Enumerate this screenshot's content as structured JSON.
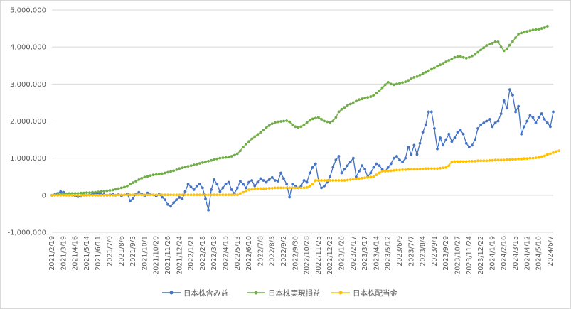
{
  "chart_data": {
    "type": "line",
    "title": "",
    "xlabel": "",
    "ylabel": "",
    "ylim": [
      -1000000,
      5000000
    ],
    "ytick_step": 1000000,
    "y_tick_labels": [
      "-1,000,000",
      "0",
      "1,000,000",
      "2,000,000",
      "3,000,000",
      "4,000,000",
      "5,000,000"
    ],
    "negative_tick_color": "#ff0000",
    "grid": true,
    "legend_position": "bottom",
    "x_tick_labels": [
      "2021/2/19",
      "2021/3/19",
      "2021/4/16",
      "2021/5/14",
      "2021/6/11",
      "2021/7/9",
      "2021/8/6",
      "2021/9/3",
      "2021/10/1",
      "2021/10/29",
      "2021/11/26",
      "2021/12/24",
      "2022/1/21",
      "2022/2/18",
      "2022/3/18",
      "2022/4/15",
      "2022/5/13",
      "2022/6/10",
      "2022/7/8",
      "2022/8/5",
      "2022/9/2",
      "2022/9/30",
      "2022/10/28",
      "2022/11/25",
      "2022/12/23",
      "2023/1/20",
      "2023/2/17",
      "2023/3/17",
      "2023/4/14",
      "2023/5/12",
      "2023/6/9",
      "2023/7/7",
      "2023/8/4",
      "2023/9/1",
      "2023/9/29",
      "2023/10/27",
      "2023/11/24",
      "2023/12/22",
      "2024/1/19",
      "2024/2/16",
      "2024/3/15",
      "2024/4/12",
      "2024/5/10",
      "2024/6/7"
    ],
    "points_per_label": 4,
    "series": [
      {
        "name": "日本株含み益",
        "color": "#4472c4",
        "values": [
          0,
          20000,
          50000,
          100000,
          80000,
          40000,
          20000,
          0,
          -20000,
          -40000,
          -30000,
          20000,
          0,
          10000,
          30000,
          50000,
          40000,
          30000,
          20000,
          0,
          10000,
          30000,
          0,
          20000,
          -10000,
          10000,
          40000,
          -150000,
          -80000,
          30000,
          80000,
          40000,
          -10000,
          60000,
          20000,
          10000,
          -20000,
          30000,
          -50000,
          -120000,
          -250000,
          -300000,
          -200000,
          -120000,
          -60000,
          -100000,
          100000,
          300000,
          220000,
          150000,
          250000,
          300000,
          200000,
          -100000,
          -400000,
          150000,
          420000,
          300000,
          100000,
          200000,
          300000,
          350000,
          150000,
          50000,
          200000,
          380000,
          300000,
          200000,
          350000,
          400000,
          250000,
          350000,
          450000,
          400000,
          350000,
          420000,
          480000,
          400000,
          380000,
          600000,
          450000,
          300000,
          -50000,
          300000,
          250000,
          200000,
          250000,
          400000,
          350000,
          600000,
          750000,
          850000,
          400000,
          200000,
          250000,
          350000,
          500000,
          750000,
          950000,
          1050000,
          600000,
          700000,
          800000,
          900000,
          1000000,
          500000,
          650000,
          800000,
          700000,
          500000,
          600000,
          750000,
          850000,
          800000,
          700000,
          650000,
          750000,
          850000,
          1000000,
          1050000,
          950000,
          900000,
          1000000,
          1300000,
          1100000,
          1350000,
          1100000,
          1400000,
          1700000,
          1900000,
          2250000,
          2250000,
          1800000,
          1250000,
          1550000,
          1350000,
          1500000,
          1650000,
          1450000,
          1550000,
          1700000,
          1750000,
          1650000,
          1400000,
          1300000,
          1350000,
          1500000,
          1800000,
          1900000,
          1950000,
          2000000,
          2050000,
          1850000,
          1950000,
          2000000,
          2200000,
          2550000,
          2350000,
          2850000,
          2700000,
          2250000,
          2400000,
          1650000,
          1850000,
          2000000,
          2150000,
          2100000,
          1950000,
          2100000,
          2200000,
          2050000,
          1950000,
          1850000,
          2250000
        ]
      },
      {
        "name": "日本株実現損益",
        "color": "#70ad47",
        "values": [
          0,
          10000,
          20000,
          30000,
          40000,
          40000,
          50000,
          50000,
          50000,
          50000,
          60000,
          60000,
          70000,
          70000,
          80000,
          80000,
          90000,
          100000,
          110000,
          120000,
          130000,
          140000,
          160000,
          180000,
          200000,
          220000,
          250000,
          300000,
          340000,
          380000,
          420000,
          460000,
          490000,
          510000,
          530000,
          550000,
          560000,
          570000,
          580000,
          600000,
          620000,
          640000,
          660000,
          690000,
          720000,
          740000,
          760000,
          780000,
          800000,
          820000,
          840000,
          860000,
          880000,
          900000,
          920000,
          940000,
          960000,
          980000,
          1000000,
          1010000,
          1020000,
          1030000,
          1050000,
          1080000,
          1120000,
          1200000,
          1300000,
          1380000,
          1450000,
          1520000,
          1580000,
          1640000,
          1700000,
          1760000,
          1820000,
          1880000,
          1930000,
          1960000,
          1980000,
          1990000,
          2000000,
          2010000,
          1980000,
          1900000,
          1850000,
          1830000,
          1850000,
          1900000,
          1960000,
          2020000,
          2060000,
          2080000,
          2100000,
          2050000,
          2000000,
          1980000,
          1960000,
          2000000,
          2100000,
          2250000,
          2320000,
          2370000,
          2420000,
          2460000,
          2500000,
          2540000,
          2580000,
          2600000,
          2620000,
          2640000,
          2660000,
          2700000,
          2760000,
          2820000,
          2900000,
          2980000,
          3050000,
          3000000,
          2980000,
          3000000,
          3020000,
          3040000,
          3060000,
          3100000,
          3140000,
          3180000,
          3200000,
          3240000,
          3280000,
          3320000,
          3360000,
          3400000,
          3440000,
          3480000,
          3520000,
          3560000,
          3600000,
          3640000,
          3680000,
          3720000,
          3740000,
          3750000,
          3720000,
          3700000,
          3720000,
          3760000,
          3800000,
          3860000,
          3920000,
          3980000,
          4040000,
          4080000,
          4100000,
          4140000,
          4140000,
          4000000,
          3900000,
          3950000,
          4050000,
          4150000,
          4250000,
          4350000,
          4380000,
          4400000,
          4420000,
          4440000,
          4460000,
          4470000,
          4480000,
          4500000,
          4520000,
          4560000
        ]
      },
      {
        "name": "日本株配当金",
        "color": "#ffc000",
        "values": [
          0,
          0,
          0,
          0,
          0,
          0,
          0,
          0,
          0,
          0,
          0,
          0,
          0,
          0,
          0,
          0,
          0,
          0,
          0,
          0,
          0,
          0,
          0,
          10000,
          10000,
          10000,
          10000,
          10000,
          10000,
          10000,
          10000,
          10000,
          10000,
          10000,
          10000,
          10000,
          10000,
          10000,
          10000,
          10000,
          10000,
          10000,
          10000,
          10000,
          10000,
          10000,
          10000,
          10000,
          10000,
          10000,
          10000,
          10000,
          10000,
          10000,
          10000,
          10000,
          10000,
          10000,
          10000,
          10000,
          10000,
          10000,
          10000,
          10000,
          10000,
          50000,
          80000,
          120000,
          150000,
          160000,
          170000,
          180000,
          180000,
          180000,
          180000,
          190000,
          190000,
          200000,
          200000,
          200000,
          200000,
          200000,
          200000,
          200000,
          200000,
          200000,
          200000,
          200000,
          210000,
          250000,
          300000,
          400000,
          400000,
          400000,
          400000,
          400000,
          400000,
          400000,
          400000,
          400000,
          400000,
          400000,
          410000,
          420000,
          430000,
          440000,
          450000,
          460000,
          470000,
          480000,
          490000,
          500000,
          550000,
          600000,
          650000,
          650000,
          650000,
          660000,
          670000,
          680000,
          680000,
          690000,
          690000,
          700000,
          700000,
          700000,
          700000,
          710000,
          710000,
          720000,
          720000,
          720000,
          720000,
          720000,
          730000,
          740000,
          750000,
          800000,
          900000,
          910000,
          910000,
          910000,
          910000,
          910000,
          920000,
          920000,
          920000,
          930000,
          930000,
          930000,
          930000,
          940000,
          940000,
          950000,
          950000,
          950000,
          950000,
          960000,
          960000,
          970000,
          970000,
          980000,
          980000,
          990000,
          990000,
          1000000,
          1000000,
          1010000,
          1020000,
          1040000,
          1060000,
          1100000,
          1120000,
          1150000,
          1180000,
          1200000
        ]
      }
    ]
  }
}
